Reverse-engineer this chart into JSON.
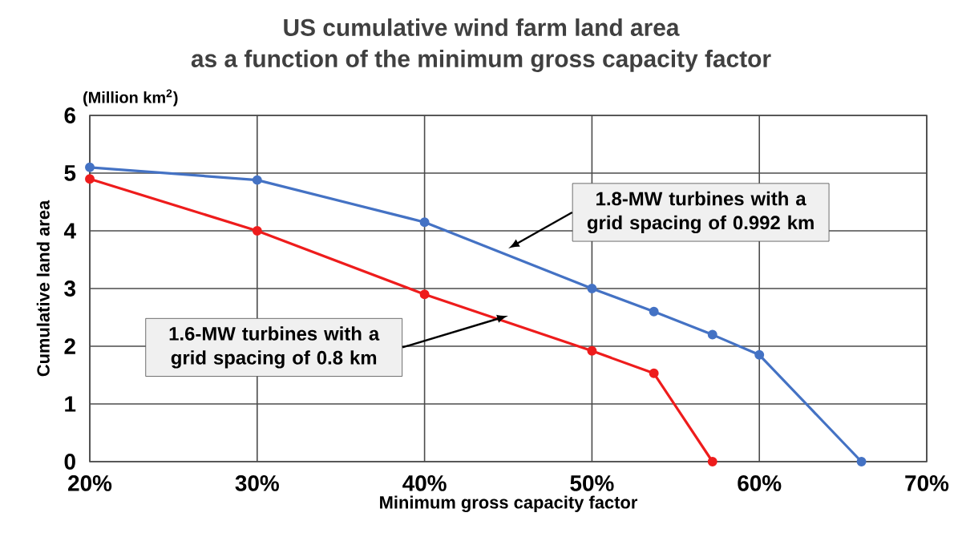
{
  "chart_data": {
    "type": "line",
    "title": "US cumulative wind farm land area",
    "subtitle": "as a function of the minimum gross capacity factor",
    "xlabel": "Minimum gross capacity factor",
    "ylabel": "Cumulative land area",
    "annotations": [
      "(Million km$^{2}$)"
    ],
    "series": [
      {
        "name": "1.8-MW turbines with a grid spacing of 0.992 km",
        "color": "#4472c4",
        "x": [
          20,
          30,
          40,
          50,
          53.7,
          57.2,
          60,
          66.1
        ],
        "values": [
          5.1,
          4.88,
          4.15,
          3.0,
          2.6,
          2.2,
          1.85,
          0
        ]
      },
      {
        "name": "1.6-MW turbines with a grid spacing of 0.8 km",
        "color": "#ee1c1c",
        "x": [
          20,
          30,
          40,
          50,
          53.7,
          57.2
        ],
        "values": [
          4.9,
          4.0,
          2.9,
          1.92,
          1.53,
          0
        ]
      }
    ],
    "xlim": [
      20,
      70
    ],
    "ylim": [
      0,
      6
    ],
    "xticks": [
      {
        "value": 20,
        "label": "20%"
      },
      {
        "value": 30,
        "label": "30%"
      },
      {
        "value": 40,
        "label": "40%"
      },
      {
        "value": 50,
        "label": "50%"
      },
      {
        "value": 60,
        "label": "60%"
      },
      {
        "value": 70,
        "label": "70%"
      }
    ],
    "yticks": [
      0,
      1,
      2,
      3,
      4,
      5,
      6
    ],
    "grid": true,
    "marker": "circle",
    "line_style": "solid"
  }
}
